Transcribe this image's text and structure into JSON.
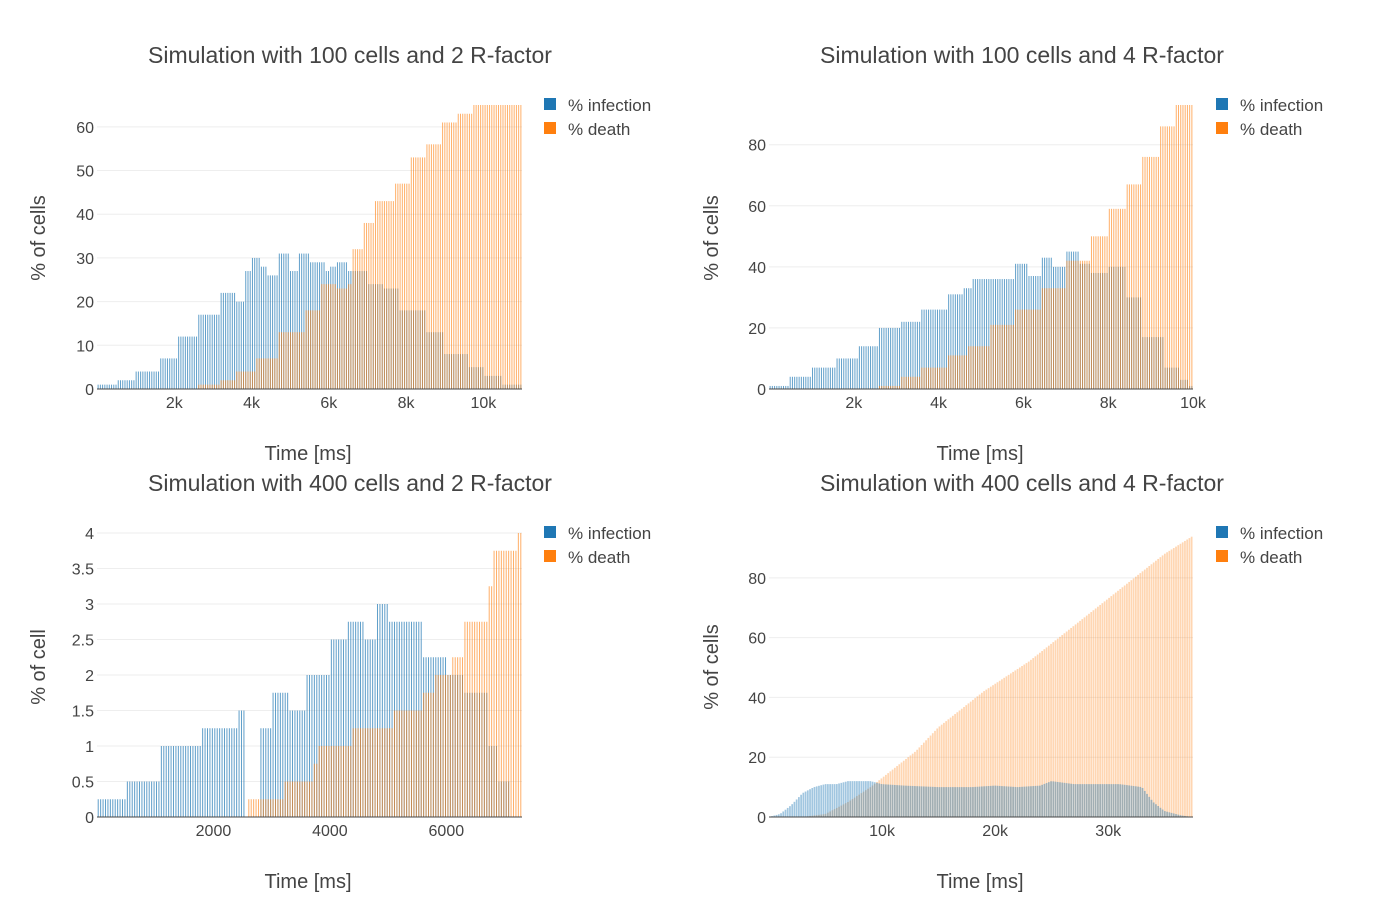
{
  "chart_data": [
    {
      "type": "bar",
      "title": "Simulation with 100 cells and 2 R-factor",
      "xlabel": "Time [ms]",
      "ylabel": "% of cells",
      "xlim": [
        0,
        11000
      ],
      "ylim": [
        0,
        65
      ],
      "xticks": [
        {
          "value": 2000,
          "label": "2k"
        },
        {
          "value": 4000,
          "label": "4k"
        },
        {
          "value": 6000,
          "label": "6k"
        },
        {
          "value": 8000,
          "label": "8k"
        },
        {
          "value": 10000,
          "label": "10k"
        }
      ],
      "yticks": [
        {
          "value": 0,
          "label": "0"
        },
        {
          "value": 10,
          "label": "10"
        },
        {
          "value": 20,
          "label": "20"
        },
        {
          "value": 30,
          "label": "30"
        },
        {
          "value": 40,
          "label": "40"
        },
        {
          "value": 50,
          "label": "50"
        },
        {
          "value": 60,
          "label": "60"
        }
      ],
      "grid": true,
      "legend_position": "top-right",
      "series": [
        {
          "name": "% infection",
          "color": "#1f77b4",
          "points": [
            [
              0,
              1
            ],
            [
              500,
              2
            ],
            [
              1000,
              4
            ],
            [
              1600,
              7
            ],
            [
              2100,
              12
            ],
            [
              2600,
              17
            ],
            [
              3200,
              22
            ],
            [
              3600,
              20
            ],
            [
              3800,
              27
            ],
            [
              4000,
              30
            ],
            [
              4200,
              28
            ],
            [
              4400,
              26
            ],
            [
              4700,
              31
            ],
            [
              5000,
              27
            ],
            [
              5200,
              31
            ],
            [
              5500,
              29
            ],
            [
              5900,
              27
            ],
            [
              6000,
              28
            ],
            [
              6200,
              29
            ],
            [
              6500,
              27
            ],
            [
              7000,
              24
            ],
            [
              7400,
              23
            ],
            [
              7800,
              18
            ],
            [
              8500,
              13
            ],
            [
              9000,
              8
            ],
            [
              9600,
              5
            ],
            [
              10000,
              3
            ],
            [
              10500,
              1
            ]
          ]
        },
        {
          "name": "% death",
          "color": "#ff7f0e",
          "points": [
            [
              0,
              0
            ],
            [
              2500,
              0
            ],
            [
              2600,
              1
            ],
            [
              3200,
              2
            ],
            [
              3600,
              4
            ],
            [
              4100,
              7
            ],
            [
              4700,
              13
            ],
            [
              5400,
              18
            ],
            [
              5800,
              24
            ],
            [
              6200,
              23
            ],
            [
              6500,
              24
            ],
            [
              6600,
              32
            ],
            [
              6900,
              38
            ],
            [
              7200,
              43
            ],
            [
              7700,
              47
            ],
            [
              8100,
              53
            ],
            [
              8500,
              56
            ],
            [
              8900,
              61
            ],
            [
              9300,
              63
            ],
            [
              9700,
              65
            ]
          ]
        }
      ]
    },
    {
      "type": "bar",
      "title": "Simulation with 100 cells and 4 R-factor",
      "xlabel": "Time [ms]",
      "ylabel": "% of cells",
      "xlim": [
        0,
        10000
      ],
      "ylim": [
        0,
        93
      ],
      "xticks": [
        {
          "value": 2000,
          "label": "2k"
        },
        {
          "value": 4000,
          "label": "4k"
        },
        {
          "value": 6000,
          "label": "6k"
        },
        {
          "value": 8000,
          "label": "8k"
        },
        {
          "value": 10000,
          "label": "10k"
        }
      ],
      "yticks": [
        {
          "value": 0,
          "label": "0"
        },
        {
          "value": 20,
          "label": "20"
        },
        {
          "value": 40,
          "label": "40"
        },
        {
          "value": 60,
          "label": "60"
        },
        {
          "value": 80,
          "label": "80"
        }
      ],
      "grid": true,
      "legend_position": "top-right",
      "series": [
        {
          "name": "% infection",
          "color": "#1f77b4",
          "points": [
            [
              0,
              1
            ],
            [
              500,
              4
            ],
            [
              1000,
              7
            ],
            [
              1600,
              10
            ],
            [
              2100,
              14
            ],
            [
              2600,
              20
            ],
            [
              3100,
              22
            ],
            [
              3600,
              26
            ],
            [
              4200,
              31
            ],
            [
              4600,
              33
            ],
            [
              4800,
              36
            ],
            [
              5400,
              36
            ],
            [
              5800,
              41
            ],
            [
              6100,
              37
            ],
            [
              6400,
              43
            ],
            [
              6700,
              40
            ],
            [
              7000,
              45
            ],
            [
              7300,
              41
            ],
            [
              7600,
              38
            ],
            [
              8000,
              40
            ],
            [
              8400,
              30
            ],
            [
              8800,
              17
            ],
            [
              9300,
              7
            ],
            [
              9700,
              3
            ],
            [
              9900,
              1
            ]
          ]
        },
        {
          "name": "% death",
          "color": "#ff7f0e",
          "points": [
            [
              0,
              0
            ],
            [
              2500,
              0
            ],
            [
              2600,
              1
            ],
            [
              3100,
              4
            ],
            [
              3600,
              7
            ],
            [
              4200,
              11
            ],
            [
              4700,
              14
            ],
            [
              5200,
              21
            ],
            [
              5800,
              26
            ],
            [
              6400,
              33
            ],
            [
              7000,
              42
            ],
            [
              7600,
              50
            ],
            [
              8000,
              59
            ],
            [
              8400,
              67
            ],
            [
              8800,
              76
            ],
            [
              9200,
              86
            ],
            [
              9600,
              93
            ]
          ]
        }
      ]
    },
    {
      "type": "bar",
      "title": "Simulation with 400 cells and 2 R-factor",
      "xlabel": "Time [ms]",
      "ylabel": "% of cell",
      "xlim": [
        0,
        7300
      ],
      "ylim": [
        0,
        4
      ],
      "xticks": [
        {
          "value": 2000,
          "label": "2000"
        },
        {
          "value": 4000,
          "label": "4000"
        },
        {
          "value": 6000,
          "label": "6000"
        }
      ],
      "yticks": [
        {
          "value": 0,
          "label": "0"
        },
        {
          "value": 0.5,
          "label": "0.5"
        },
        {
          "value": 1,
          "label": "1"
        },
        {
          "value": 1.5,
          "label": "1.5"
        },
        {
          "value": 2,
          "label": "2"
        },
        {
          "value": 2.5,
          "label": "2.5"
        },
        {
          "value": 3,
          "label": "3"
        },
        {
          "value": 3.5,
          "label": "3.5"
        },
        {
          "value": 4,
          "label": "4"
        }
      ],
      "grid": true,
      "legend_position": "top-right",
      "series": [
        {
          "name": "% infection",
          "color": "#1f77b4",
          "points": [
            [
              0,
              0.25
            ],
            [
              500,
              0.5
            ],
            [
              1100,
              1
            ],
            [
              1800,
              1.25
            ],
            [
              2400,
              1.5
            ],
            [
              2550,
              0
            ],
            [
              2800,
              1.25
            ],
            [
              3000,
              1.75
            ],
            [
              3300,
              1.5
            ],
            [
              3600,
              2
            ],
            [
              4000,
              2.5
            ],
            [
              4300,
              2.75
            ],
            [
              4600,
              2.5
            ],
            [
              4800,
              3
            ],
            [
              5000,
              2.75
            ],
            [
              5600,
              2.25
            ],
            [
              6000,
              2
            ],
            [
              6300,
              1.75
            ],
            [
              6700,
              1
            ],
            [
              6900,
              0.5
            ],
            [
              7100,
              0
            ]
          ]
        },
        {
          "name": "% death",
          "color": "#ff7f0e",
          "points": [
            [
              0,
              0
            ],
            [
              2600,
              0.25
            ],
            [
              3200,
              0.5
            ],
            [
              3700,
              0.75
            ],
            [
              3800,
              1
            ],
            [
              4400,
              1.25
            ],
            [
              5100,
              1.5
            ],
            [
              5600,
              1.75
            ],
            [
              5800,
              2
            ],
            [
              6100,
              2.25
            ],
            [
              6300,
              2.75
            ],
            [
              6700,
              3.25
            ],
            [
              6800,
              3.75
            ],
            [
              7200,
              4
            ]
          ]
        }
      ]
    },
    {
      "type": "area",
      "title": "Simulation with 400 cells and 4 R-factor",
      "xlabel": "Time [ms]",
      "ylabel": "% of cells",
      "xlim": [
        0,
        37500
      ],
      "ylim": [
        0,
        95
      ],
      "xticks": [
        {
          "value": 10000,
          "label": "10k"
        },
        {
          "value": 20000,
          "label": "20k"
        },
        {
          "value": 30000,
          "label": "30k"
        }
      ],
      "yticks": [
        {
          "value": 0,
          "label": "0"
        },
        {
          "value": 20,
          "label": "20"
        },
        {
          "value": 40,
          "label": "40"
        },
        {
          "value": 60,
          "label": "60"
        },
        {
          "value": 80,
          "label": "80"
        }
      ],
      "grid": true,
      "legend_position": "top-right",
      "series": [
        {
          "name": "% infection",
          "color": "#1f77b4",
          "points": [
            [
              0,
              0
            ],
            [
              1000,
              1
            ],
            [
              2000,
              4
            ],
            [
              3000,
              8
            ],
            [
              4000,
              10
            ],
            [
              5000,
              11
            ],
            [
              6000,
              11
            ],
            [
              7000,
              12
            ],
            [
              8000,
              12
            ],
            [
              9000,
              12
            ],
            [
              10000,
              11
            ],
            [
              12000,
              10.5
            ],
            [
              15000,
              10
            ],
            [
              18000,
              10
            ],
            [
              20000,
              10.5
            ],
            [
              22000,
              10
            ],
            [
              24000,
              10.5
            ],
            [
              25000,
              12
            ],
            [
              27000,
              11
            ],
            [
              29000,
              11
            ],
            [
              31000,
              11
            ],
            [
              33000,
              10
            ],
            [
              34000,
              5
            ],
            [
              35000,
              2
            ],
            [
              36500,
              0.5
            ],
            [
              37500,
              0
            ]
          ]
        },
        {
          "name": "% death",
          "color": "#ff7f0e",
          "points": [
            [
              0,
              0
            ],
            [
              3000,
              0
            ],
            [
              5000,
              1
            ],
            [
              7000,
              5
            ],
            [
              9000,
              10
            ],
            [
              11000,
              16
            ],
            [
              13000,
              22
            ],
            [
              15000,
              30
            ],
            [
              17000,
              36
            ],
            [
              19000,
              42
            ],
            [
              21000,
              47
            ],
            [
              23000,
              52
            ],
            [
              25000,
              58
            ],
            [
              27000,
              64
            ],
            [
              29000,
              70
            ],
            [
              31000,
              76
            ],
            [
              33000,
              82
            ],
            [
              35000,
              88
            ],
            [
              37500,
              94
            ]
          ]
        }
      ]
    }
  ]
}
